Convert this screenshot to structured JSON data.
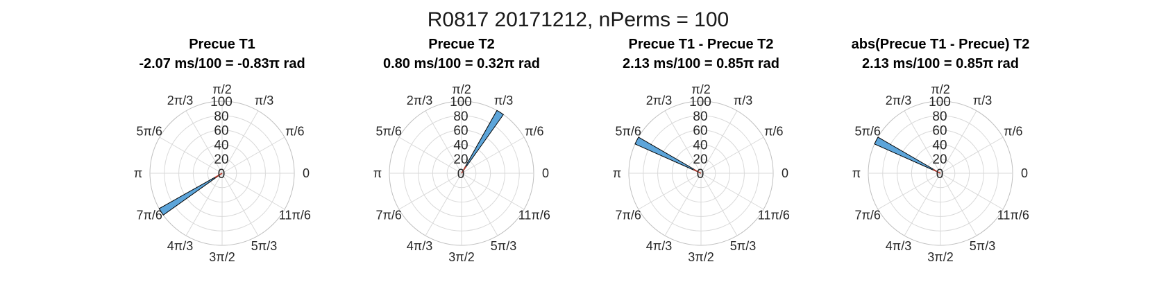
{
  "figure": {
    "title": "R0817 20171212, nPerms = 100"
  },
  "colors": {
    "bar_face": "#5DA5DA",
    "bar_edge": "#000000",
    "mean_line": "#C0392B",
    "grid": "#D9D9D9"
  },
  "chart_data": [
    {
      "type": "polar-histogram",
      "title": "Precue T1",
      "subtitle": "-2.07 ms/100 = -0.83π rad",
      "theta_ticks": [
        "0",
        "π/6",
        "π/3",
        "π/2",
        "2π/3",
        "5π/6",
        "π",
        "7π/6",
        "4π/3",
        "3π/2",
        "5π/3",
        "11π/6"
      ],
      "r_ticks": [
        "0",
        "20",
        "40",
        "60",
        "80",
        "100"
      ],
      "rlim": [
        0,
        100
      ],
      "bins": [
        {
          "theta_start_pi": 1.163,
          "theta_end_pi": 1.197,
          "count": 100
        }
      ],
      "mean_angle_pi": -0.83
    },
    {
      "type": "polar-histogram",
      "title": "Precue T2",
      "subtitle": "0.80 ms/100 = 0.32π rad",
      "theta_ticks": [
        "0",
        "π/6",
        "π/3",
        "π/2",
        "2π/3",
        "5π/6",
        "π",
        "7π/6",
        "4π/3",
        "3π/2",
        "5π/3",
        "11π/6"
      ],
      "r_ticks": [
        "0",
        "20",
        "40",
        "60",
        "80",
        "100"
      ],
      "rlim": [
        0,
        100
      ],
      "bins": [
        {
          "theta_start_pi": 0.303,
          "theta_end_pi": 0.337,
          "count": 100
        }
      ],
      "mean_angle_pi": 0.32
    },
    {
      "type": "polar-histogram",
      "title": "Precue T1 - Precue T2",
      "subtitle": "2.13 ms/100 = 0.85π rad",
      "theta_ticks": [
        "0",
        "π/6",
        "π/3",
        "π/2",
        "2π/3",
        "5π/6",
        "π",
        "7π/6",
        "4π/3",
        "3π/2",
        "5π/3",
        "11π/6"
      ],
      "r_ticks": [
        "0",
        "20",
        "40",
        "60",
        "80",
        "100"
      ],
      "rlim": [
        0,
        100
      ],
      "bins": [
        {
          "theta_start_pi": 0.833,
          "theta_end_pi": 0.867,
          "count": 100
        }
      ],
      "mean_angle_pi": 0.85
    },
    {
      "type": "polar-histogram",
      "title": "abs(Precue T1 - Precue) T2",
      "subtitle": "2.13 ms/100 = 0.85π rad",
      "theta_ticks": [
        "0",
        "π/6",
        "π/3",
        "π/2",
        "2π/3",
        "5π/6",
        "π",
        "7π/6",
        "4π/3",
        "3π/2",
        "5π/3",
        "11π/6"
      ],
      "r_ticks": [
        "0",
        "20",
        "40",
        "60",
        "80",
        "100"
      ],
      "rlim": [
        0,
        100
      ],
      "bins": [
        {
          "theta_start_pi": 0.833,
          "theta_end_pi": 0.867,
          "count": 100
        }
      ],
      "mean_angle_pi": 0.85
    }
  ]
}
